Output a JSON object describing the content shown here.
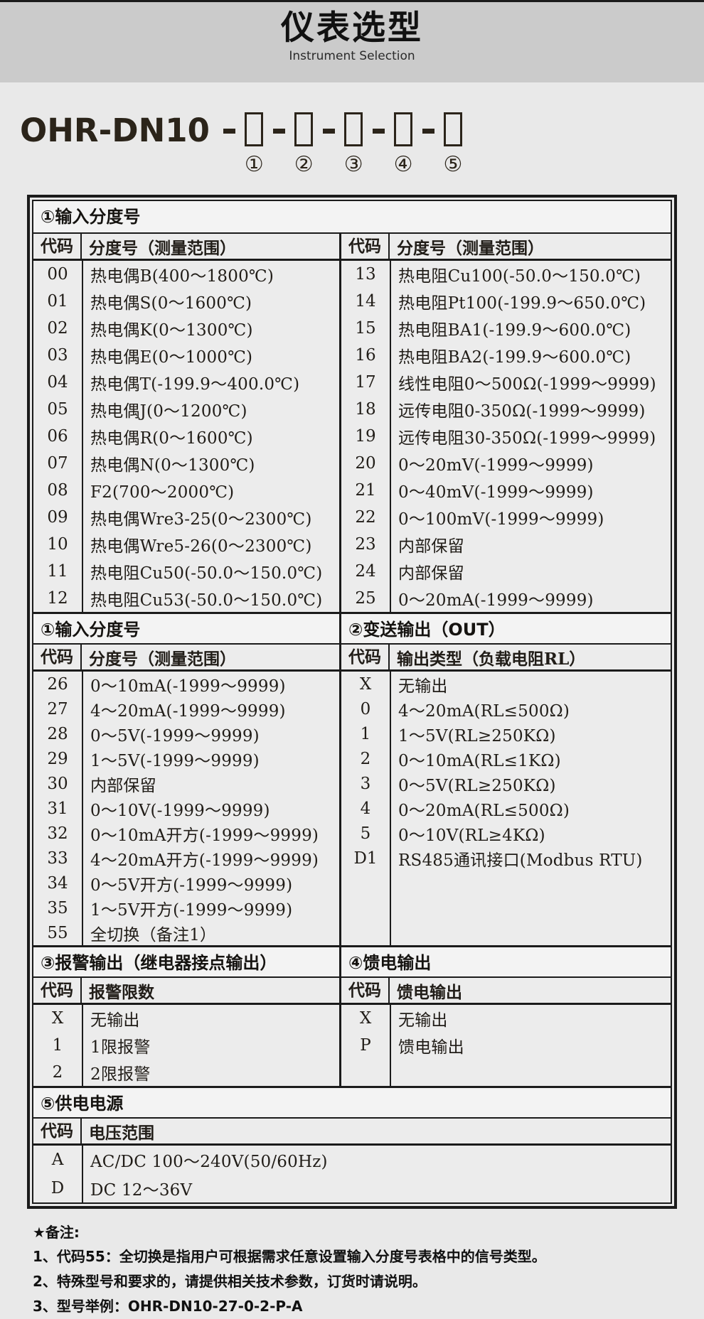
{
  "header": {
    "title_cn": "仪表选型",
    "title_en": "Instrument Selection"
  },
  "model": {
    "prefix": "OHR-DN10",
    "positions": [
      "①",
      "②",
      "③",
      "④",
      "⑤"
    ]
  },
  "colors": {
    "page_bg": "#e9e9e9",
    "header_bg": "#cbcbcb",
    "table_border": "#1b1b1b",
    "text": "#211d18"
  },
  "sections": [
    {
      "band": {
        "full": "①输入分度号"
      },
      "left": {
        "headers": [
          "代码",
          "分度号（测量范围）"
        ],
        "rows": [
          [
            "00",
            "热电偶B(400～1800℃)"
          ],
          [
            "01",
            "热电偶S(0～1600℃)"
          ],
          [
            "02",
            "热电偶K(0～1300℃)"
          ],
          [
            "03",
            "热电偶E(0～1000℃)"
          ],
          [
            "04",
            "热电偶T(-199.9～400.0℃)"
          ],
          [
            "05",
            "热电偶J(0～1200℃)"
          ],
          [
            "06",
            "热电偶R(0～1600℃)"
          ],
          [
            "07",
            "热电偶N(0～1300℃)"
          ],
          [
            "08",
            "F2(700～2000℃)"
          ],
          [
            "09",
            "热电偶Wre3-25(0～2300℃)"
          ],
          [
            "10",
            "热电偶Wre5-26(0～2300℃)"
          ],
          [
            "11",
            "热电阻Cu50(-50.0～150.0℃)"
          ],
          [
            "12",
            "热电阻Cu53(-50.0～150.0℃)"
          ]
        ]
      },
      "right": {
        "headers": [
          "代码",
          "分度号（测量范围）"
        ],
        "rows": [
          [
            "13",
            "热电阻Cu100(-50.0～150.0℃)"
          ],
          [
            "14",
            "热电阻Pt100(-199.9～650.0℃)"
          ],
          [
            "15",
            "热电阻BA1(-199.9～600.0℃)"
          ],
          [
            "16",
            "热电阻BA2(-199.9～600.0℃)"
          ],
          [
            "17",
            "线性电阻0～500Ω(-1999～9999)"
          ],
          [
            "18",
            "远传电阻0-350Ω(-1999～9999)"
          ],
          [
            "19",
            "远传电阻30-350Ω(-1999～9999)"
          ],
          [
            "20",
            "0～20mV(-1999～9999)"
          ],
          [
            "21",
            "0～40mV(-1999～9999)"
          ],
          [
            "22",
            "0～100mV(-1999～9999)"
          ],
          [
            "23",
            "内部保留"
          ],
          [
            "24",
            "内部保留"
          ],
          [
            "25",
            "0～20mA(-1999～9999)"
          ]
        ]
      }
    },
    {
      "band": {
        "left": "①输入分度号",
        "right": "②变送输出（OUT）"
      },
      "left": {
        "headers": [
          "代码",
          "分度号（测量范围）"
        ],
        "rows": [
          [
            "26",
            "0～10mA(-1999～9999)"
          ],
          [
            "27",
            "4～20mA(-1999～9999)"
          ],
          [
            "28",
            "0～5V(-1999～9999)"
          ],
          [
            "29",
            "1～5V(-1999～9999)"
          ],
          [
            "30",
            "内部保留"
          ],
          [
            "31",
            "0～10V(-1999～9999)"
          ],
          [
            "32",
            "0～10mA开方(-1999～9999)"
          ],
          [
            "33",
            "4～20mA开方(-1999～9999)"
          ],
          [
            "34",
            "0～5V开方(-1999～9999)"
          ],
          [
            "35",
            "1～5V开方(-1999～9999)"
          ],
          [
            "55",
            "全切换（备注1）"
          ]
        ]
      },
      "right": {
        "headers": [
          "代码",
          "输出类型（负载电阻RL）"
        ],
        "rows": [
          [
            "X",
            "无输出"
          ],
          [
            "0",
            "4～20mA(RL≤500Ω)"
          ],
          [
            "1",
            "1～5V(RL≥250KΩ)"
          ],
          [
            "2",
            "0～10mA(RL≤1KΩ)"
          ],
          [
            "3",
            "0～5V(RL≥250KΩ)"
          ],
          [
            "4",
            "0～20mA(RL≤500Ω)"
          ],
          [
            "5",
            "0～10V(RL≥4KΩ)"
          ],
          [
            "D1",
            "RS485通讯接口(Modbus RTU)"
          ]
        ]
      }
    },
    {
      "band": {
        "left": "③报警输出（继电器接点输出）",
        "right": "④馈电输出"
      },
      "left": {
        "headers": [
          "代码",
          "报警限数"
        ],
        "rows": [
          [
            "X",
            "无输出"
          ],
          [
            "1",
            "1限报警"
          ],
          [
            "2",
            "2限报警"
          ]
        ]
      },
      "right": {
        "headers": [
          "代码",
          "馈电输出"
        ],
        "rows": [
          [
            "X",
            "无输出"
          ],
          [
            "P",
            "馈电输出"
          ]
        ]
      }
    },
    {
      "band": {
        "full": "⑤供电电源"
      },
      "full": {
        "headers": [
          "代码",
          "电压范围"
        ],
        "rows": [
          [
            "A",
            "AC/DC 100～240V(50/60Hz)"
          ],
          [
            "D",
            "DC 12～36V"
          ]
        ]
      }
    }
  ],
  "notes": {
    "title": "★备注:",
    "items": [
      "1、代码55：全切换是指用户可根据需求任意设置输入分度号表格中的信号类型。",
      "2、特殊型号和要求的，请提供相关技术参数，订货时请说明。",
      "3、型号举例：OHR-DN10-27-0-2-P-A"
    ]
  }
}
